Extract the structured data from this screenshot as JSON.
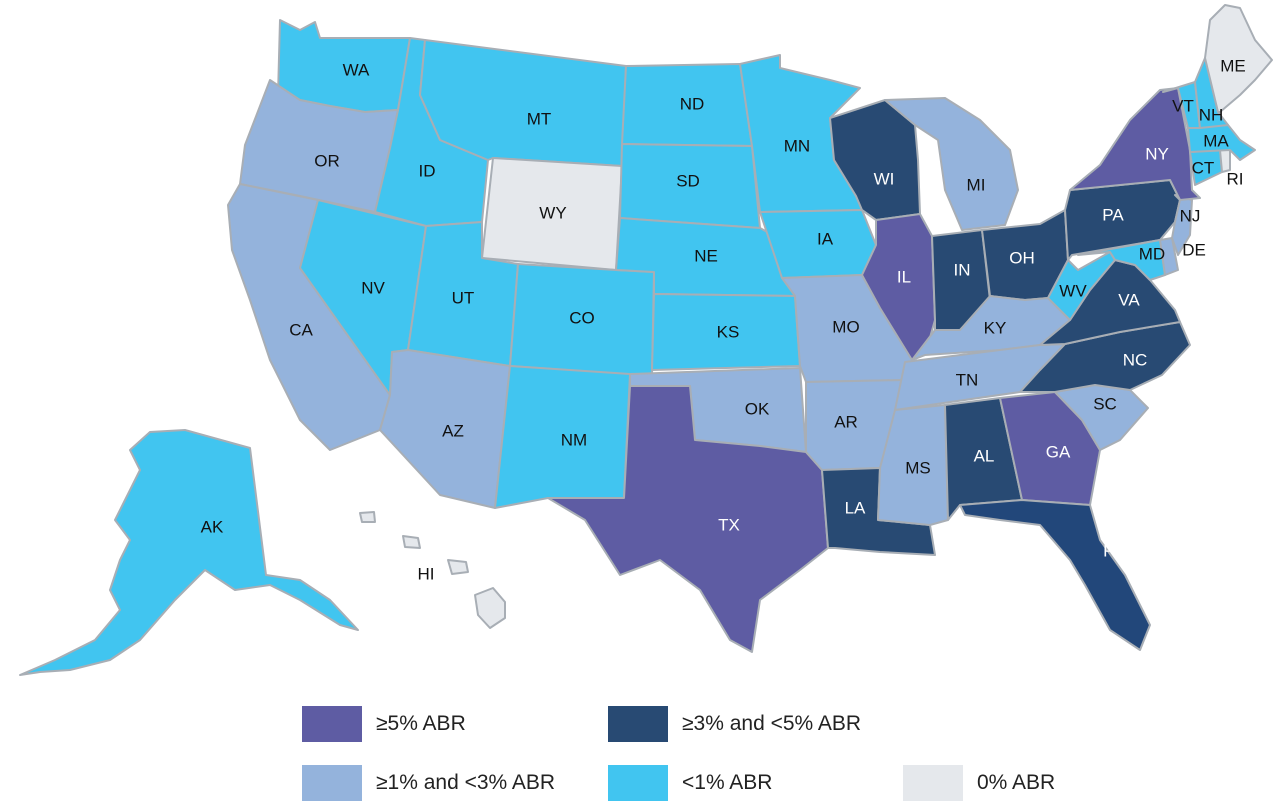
{
  "colors": {
    "ge5": "#5e5ca3",
    "ge3": "#284a73",
    "ge1": "#94b3dc",
    "lt1": "#41c5f0",
    "zero": "#e5e8ec",
    "border": "#a8aeb5",
    "fl": "#22477a"
  },
  "legend": [
    {
      "key": "ge5",
      "label": "≥5% ABR"
    },
    {
      "key": "ge3",
      "label": "≥3% and <5% ABR"
    },
    {
      "key": "ge1",
      "label": "≥1% and <3% ABR"
    },
    {
      "key": "lt1",
      "label": "<1% ABR"
    },
    {
      "key": "zero",
      "label": "0% ABR"
    }
  ],
  "states": {
    "WA": "lt1",
    "OR": "ge1",
    "CA": "ge1",
    "ID": "lt1",
    "NV": "lt1",
    "MT": "lt1",
    "WY": "zero",
    "UT": "lt1",
    "AZ": "ge1",
    "CO": "lt1",
    "NM": "lt1",
    "ND": "lt1",
    "SD": "lt1",
    "NE": "lt1",
    "KS": "lt1",
    "OK": "ge1",
    "TX": "ge5",
    "MN": "lt1",
    "IA": "lt1",
    "MO": "ge1",
    "AR": "ge1",
    "LA": "ge3",
    "WI": "ge3",
    "IL": "ge5",
    "MI": "ge1",
    "IN": "ge3",
    "OH": "ge3",
    "KY": "ge1",
    "TN": "ge1",
    "MS": "ge1",
    "AL": "ge3",
    "GA": "ge5",
    "FL": "ge3",
    "SC": "ge1",
    "NC": "ge3",
    "VA": "ge3",
    "WV": "lt1",
    "MD": "lt1",
    "DE": "ge1",
    "PA": "ge3",
    "NJ": "ge1",
    "NY": "ge5",
    "CT": "lt1",
    "RI": "zero",
    "MA": "lt1",
    "VT": "lt1",
    "NH": "lt1",
    "ME": "zero",
    "AK": "lt1",
    "HI": "zero"
  },
  "labels": {
    "WA": "WA",
    "OR": "OR",
    "CA": "CA",
    "ID": "ID",
    "NV": "NV",
    "MT": "MT",
    "WY": "WY",
    "UT": "UT",
    "AZ": "AZ",
    "CO": "CO",
    "NM": "NM",
    "ND": "ND",
    "SD": "SD",
    "NE": "NE",
    "KS": "KS",
    "OK": "OK",
    "TX": "TX",
    "MN": "MN",
    "IA": "IA",
    "MO": "MO",
    "AR": "AR",
    "LA": "LA",
    "WI": "WI",
    "IL": "IL",
    "MI": "MI",
    "IN": "IN",
    "OH": "OH",
    "KY": "KY",
    "TN": "TN",
    "MS": "MS",
    "AL": "AL",
    "GA": "GA",
    "FL": "FL",
    "SC": "SC",
    "NC": "NC",
    "VA": "VA",
    "WV": "WV",
    "MD": "MD",
    "DE": "DE",
    "PA": "PA",
    "NJ": "NJ",
    "NY": "NY",
    "CT": "CT",
    "RI": "RI",
    "MA": "MA",
    "VT": "VT",
    "NH": "NH",
    "ME": "ME",
    "AK": "AK",
    "HI": "HI"
  }
}
